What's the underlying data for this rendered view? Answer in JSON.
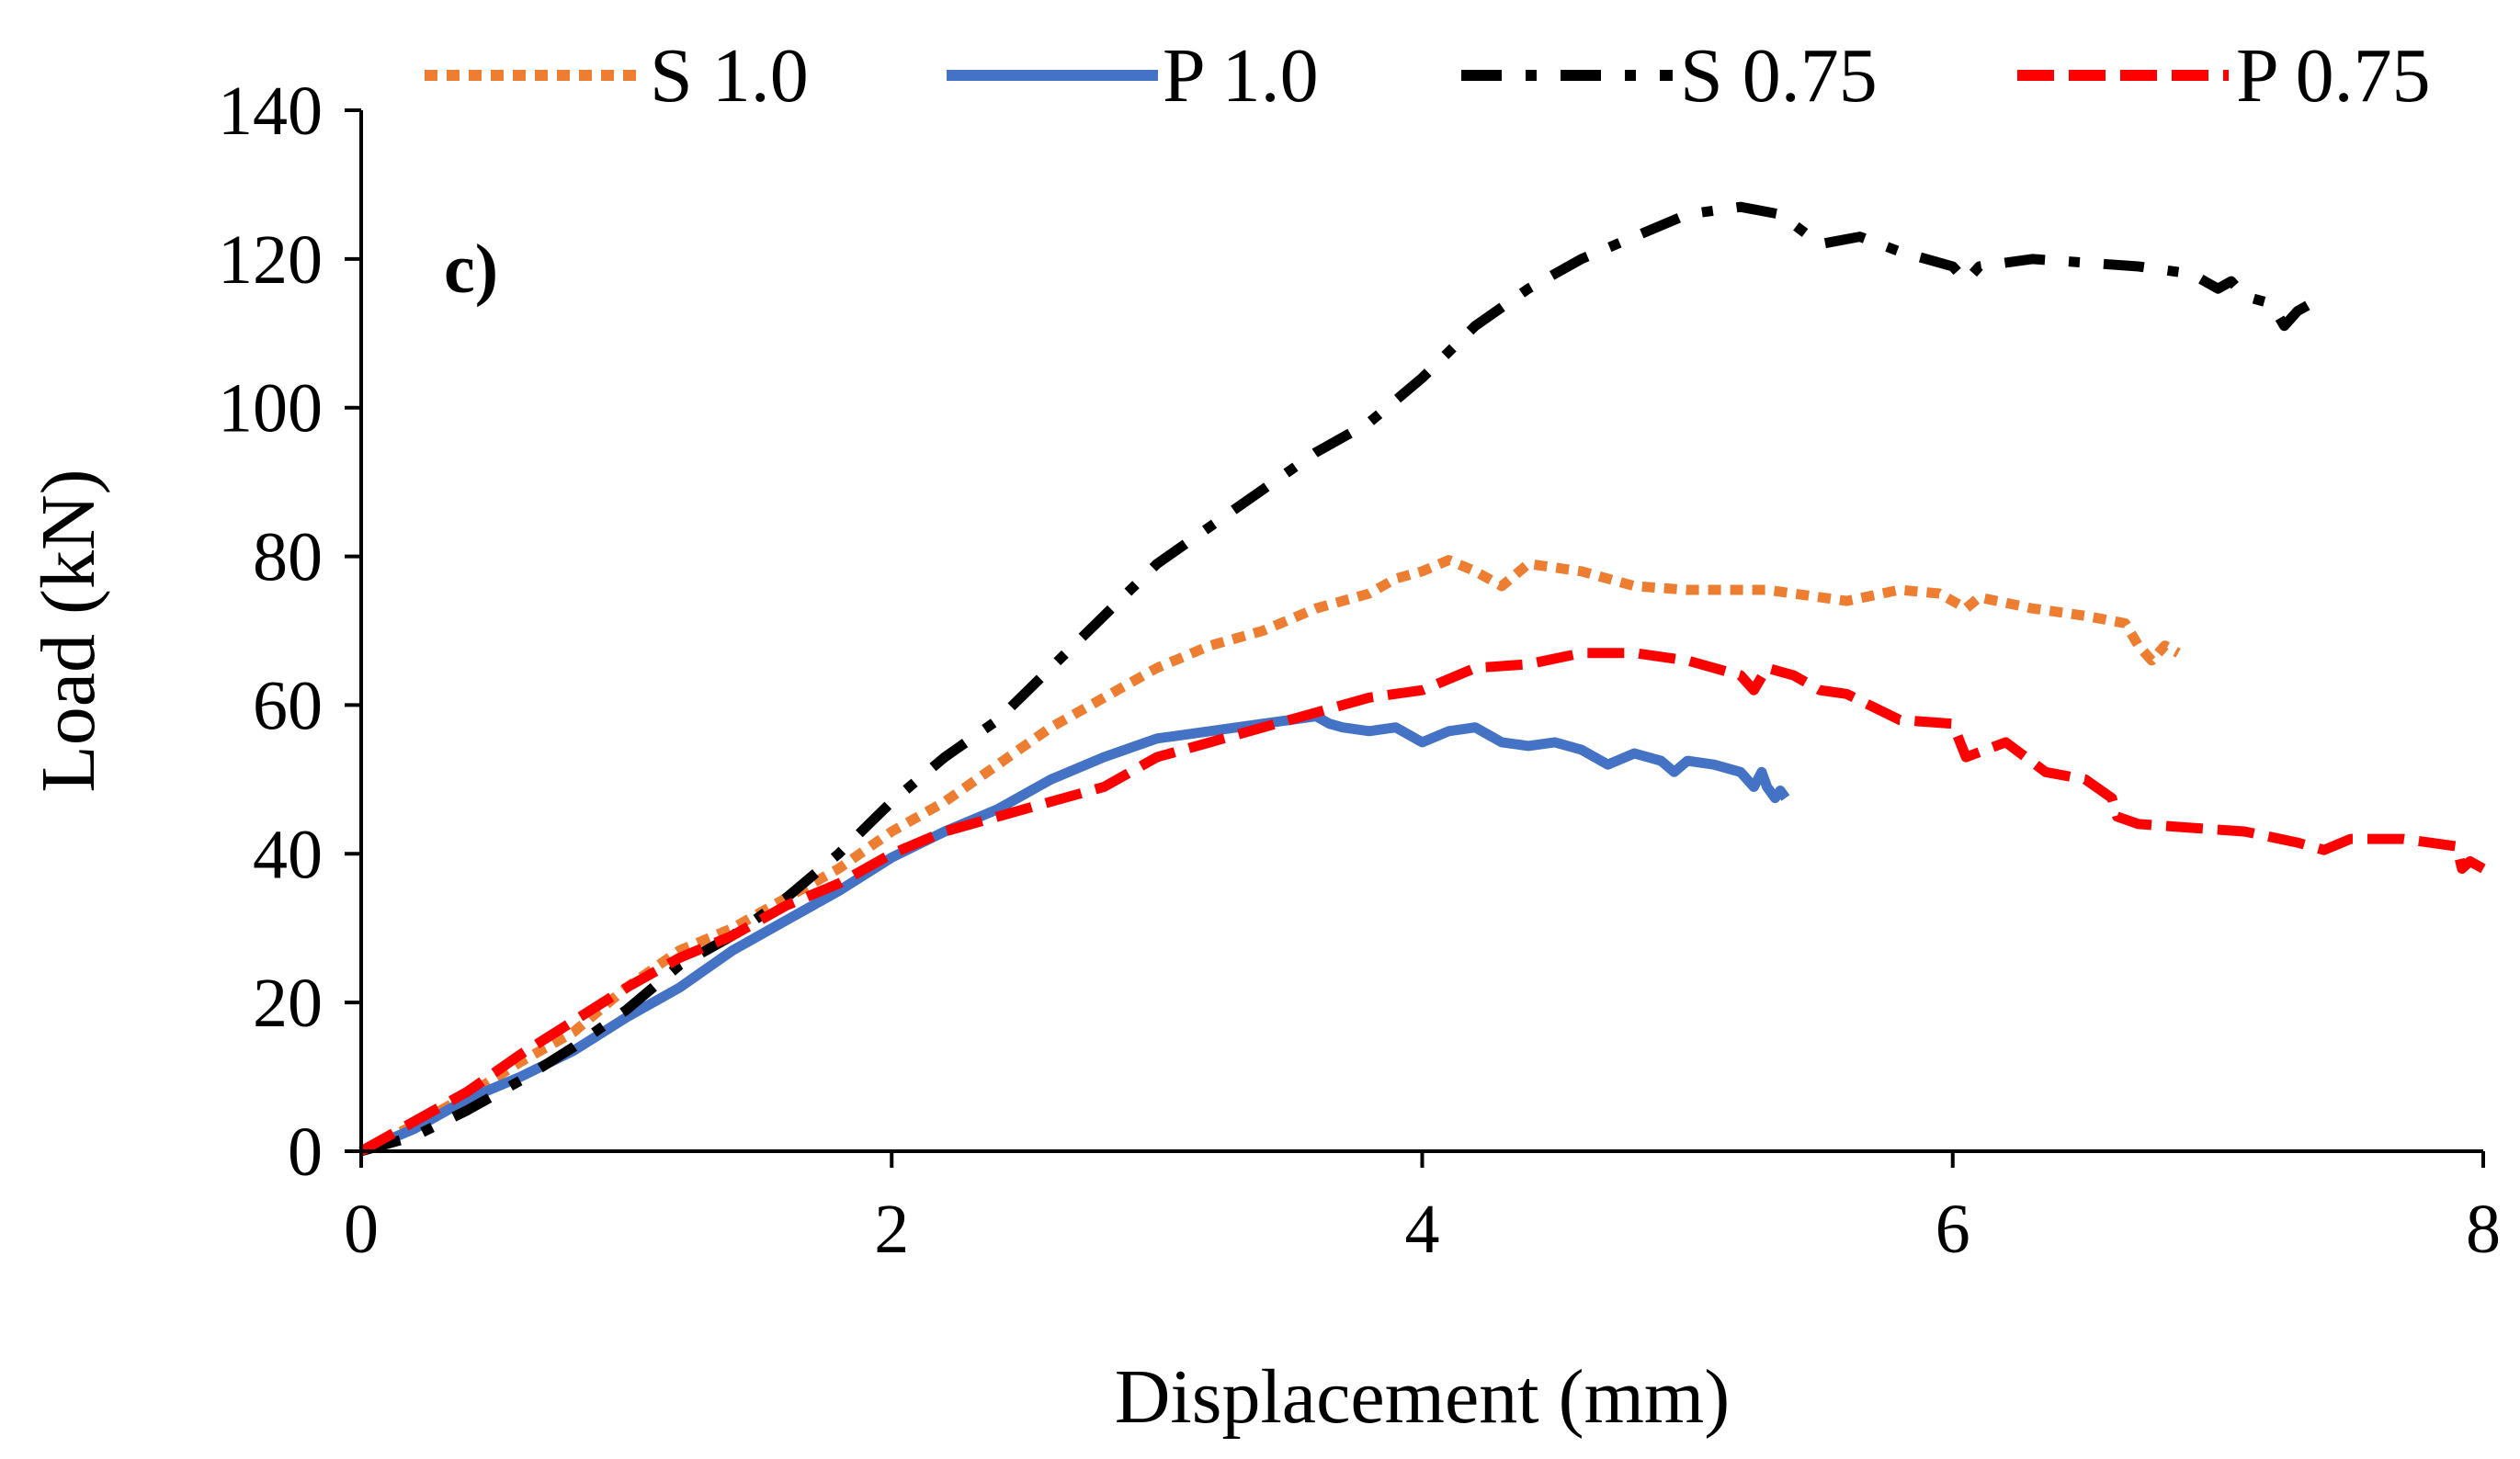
{
  "chart_data": {
    "type": "line",
    "panel_label": "c)",
    "xlabel": "Displacement (mm)",
    "ylabel": "Load (kN)",
    "xlim": [
      0,
      8
    ],
    "ylim": [
      0,
      140
    ],
    "xticks": [
      0,
      2,
      4,
      6,
      8
    ],
    "yticks": [
      0,
      20,
      40,
      60,
      80,
      100,
      120,
      140
    ],
    "x_tick_labels": [
      "0",
      "2",
      "4",
      "6",
      "8"
    ],
    "y_tick_labels": [
      "0",
      "20",
      "40",
      "60",
      "80",
      "100",
      "120",
      "140"
    ],
    "grid": false,
    "legend_position": "top",
    "series": [
      {
        "name": "S 1.0",
        "color": "#ED7D31",
        "style": "dotted",
        "points": [
          [
            0,
            0
          ],
          [
            0.2,
            3.5
          ],
          [
            0.4,
            7.5
          ],
          [
            0.6,
            12
          ],
          [
            0.8,
            16
          ],
          [
            1.0,
            22
          ],
          [
            1.2,
            27
          ],
          [
            1.4,
            30
          ],
          [
            1.6,
            34
          ],
          [
            1.8,
            38
          ],
          [
            2.0,
            43
          ],
          [
            2.2,
            47
          ],
          [
            2.4,
            52
          ],
          [
            2.6,
            57
          ],
          [
            2.8,
            61
          ],
          [
            3.0,
            65
          ],
          [
            3.2,
            68
          ],
          [
            3.4,
            70
          ],
          [
            3.6,
            73
          ],
          [
            3.8,
            75
          ],
          [
            3.9,
            77
          ],
          [
            4.0,
            78
          ],
          [
            4.1,
            79.5
          ],
          [
            4.2,
            78
          ],
          [
            4.3,
            76
          ],
          [
            4.4,
            79
          ],
          [
            4.6,
            78
          ],
          [
            4.8,
            76
          ],
          [
            5.0,
            75.5
          ],
          [
            5.3,
            75.5
          ],
          [
            5.6,
            74
          ],
          [
            5.8,
            75.5
          ],
          [
            5.95,
            75
          ],
          [
            6.05,
            73
          ],
          [
            6.1,
            74.5
          ],
          [
            6.3,
            73
          ],
          [
            6.5,
            72
          ],
          [
            6.65,
            71
          ],
          [
            6.7,
            68
          ],
          [
            6.75,
            66
          ],
          [
            6.8,
            68
          ],
          [
            6.85,
            67
          ]
        ]
      },
      {
        "name": "P 1.0",
        "color": "#4472C4",
        "style": "solid",
        "points": [
          [
            0,
            0
          ],
          [
            0.2,
            3
          ],
          [
            0.4,
            7
          ],
          [
            0.6,
            10
          ],
          [
            0.8,
            13.5
          ],
          [
            1.0,
            18
          ],
          [
            1.2,
            22
          ],
          [
            1.4,
            27
          ],
          [
            1.6,
            31
          ],
          [
            1.8,
            35
          ],
          [
            2.0,
            39.5
          ],
          [
            2.2,
            43
          ],
          [
            2.4,
            46
          ],
          [
            2.6,
            50
          ],
          [
            2.8,
            53
          ],
          [
            3.0,
            55.5
          ],
          [
            3.2,
            56.5
          ],
          [
            3.4,
            57.5
          ],
          [
            3.6,
            58.5
          ],
          [
            3.65,
            57.5
          ],
          [
            3.7,
            57
          ],
          [
            3.8,
            56.5
          ],
          [
            3.9,
            57
          ],
          [
            4.0,
            55
          ],
          [
            4.1,
            56.5
          ],
          [
            4.2,
            57
          ],
          [
            4.3,
            55
          ],
          [
            4.4,
            54.5
          ],
          [
            4.5,
            55
          ],
          [
            4.6,
            54
          ],
          [
            4.7,
            52
          ],
          [
            4.8,
            53.5
          ],
          [
            4.9,
            52.5
          ],
          [
            4.95,
            51
          ],
          [
            5.0,
            52.5
          ],
          [
            5.1,
            52
          ],
          [
            5.2,
            51
          ],
          [
            5.25,
            49
          ],
          [
            5.28,
            51
          ],
          [
            5.3,
            49
          ],
          [
            5.33,
            47.5
          ],
          [
            5.35,
            48.5
          ],
          [
            5.37,
            47.5
          ]
        ]
      },
      {
        "name": "S 0.75",
        "color": "#000000",
        "style": "dashdot",
        "points": [
          [
            0,
            0
          ],
          [
            0.2,
            2
          ],
          [
            0.4,
            5.5
          ],
          [
            0.6,
            9.5
          ],
          [
            0.8,
            14
          ],
          [
            1.0,
            19
          ],
          [
            1.2,
            25
          ],
          [
            1.4,
            29
          ],
          [
            1.6,
            34
          ],
          [
            1.8,
            40
          ],
          [
            2.0,
            47
          ],
          [
            2.2,
            53
          ],
          [
            2.4,
            58
          ],
          [
            2.6,
            65
          ],
          [
            2.8,
            72
          ],
          [
            3.0,
            79
          ],
          [
            3.2,
            84
          ],
          [
            3.4,
            89
          ],
          [
            3.6,
            94
          ],
          [
            3.8,
            98
          ],
          [
            4.0,
            104
          ],
          [
            4.2,
            111
          ],
          [
            4.4,
            116
          ],
          [
            4.6,
            120
          ],
          [
            4.8,
            123
          ],
          [
            5.0,
            126
          ],
          [
            5.2,
            127
          ],
          [
            5.35,
            126
          ],
          [
            5.5,
            122
          ],
          [
            5.65,
            123
          ],
          [
            5.8,
            121
          ],
          [
            6.0,
            119
          ],
          [
            6.05,
            117
          ],
          [
            6.1,
            119
          ],
          [
            6.3,
            120
          ],
          [
            6.5,
            119.5
          ],
          [
            6.7,
            119
          ],
          [
            6.9,
            118
          ],
          [
            7.0,
            116
          ],
          [
            7.05,
            117
          ],
          [
            7.1,
            115
          ],
          [
            7.2,
            114
          ],
          [
            7.25,
            111
          ],
          [
            7.3,
            113
          ],
          [
            7.35,
            114
          ],
          [
            7.38,
            112
          ]
        ]
      },
      {
        "name": "P 0.75",
        "color": "#FF0000",
        "style": "dashed",
        "points": [
          [
            0,
            0
          ],
          [
            0.2,
            4
          ],
          [
            0.4,
            8
          ],
          [
            0.6,
            13
          ],
          [
            0.8,
            17.5
          ],
          [
            1.0,
            22
          ],
          [
            1.2,
            26
          ],
          [
            1.4,
            29
          ],
          [
            1.6,
            33
          ],
          [
            1.8,
            36
          ],
          [
            2.0,
            40
          ],
          [
            2.2,
            43
          ],
          [
            2.4,
            45
          ],
          [
            2.6,
            47
          ],
          [
            2.8,
            49
          ],
          [
            3.0,
            53
          ],
          [
            3.2,
            55
          ],
          [
            3.4,
            57
          ],
          [
            3.6,
            59
          ],
          [
            3.8,
            61
          ],
          [
            4.0,
            62
          ],
          [
            4.2,
            65
          ],
          [
            4.4,
            65.5
          ],
          [
            4.6,
            67
          ],
          [
            4.8,
            67
          ],
          [
            5.0,
            66
          ],
          [
            5.2,
            64
          ],
          [
            5.25,
            62
          ],
          [
            5.3,
            65
          ],
          [
            5.4,
            64
          ],
          [
            5.5,
            62
          ],
          [
            5.6,
            61.5
          ],
          [
            5.8,
            58
          ],
          [
            6.0,
            57.5
          ],
          [
            6.05,
            53
          ],
          [
            6.2,
            55
          ],
          [
            6.35,
            51
          ],
          [
            6.5,
            50
          ],
          [
            6.6,
            47.5
          ],
          [
            6.62,
            45
          ],
          [
            6.7,
            44
          ],
          [
            6.9,
            43.5
          ],
          [
            7.1,
            43
          ],
          [
            7.3,
            41.5
          ],
          [
            7.4,
            40.5
          ],
          [
            7.5,
            42
          ],
          [
            7.7,
            42
          ],
          [
            7.9,
            41
          ],
          [
            7.92,
            38
          ],
          [
            7.95,
            39
          ],
          [
            8.0,
            38
          ]
        ]
      }
    ]
  }
}
